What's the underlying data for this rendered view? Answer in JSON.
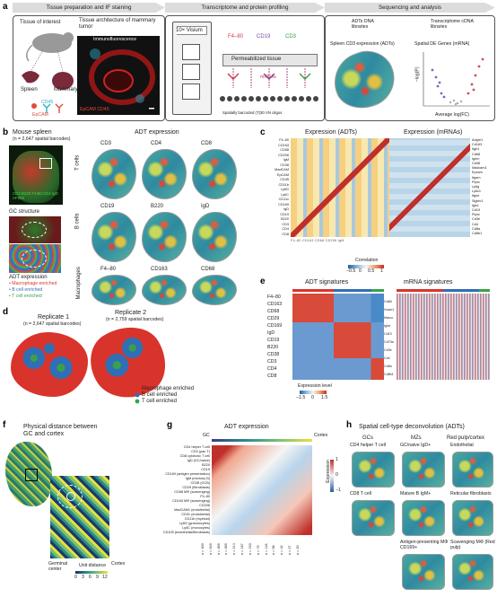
{
  "panel_letters": {
    "a": "a",
    "b": "b",
    "c": "c",
    "d": "d",
    "e": "e",
    "f": "f",
    "g": "g",
    "h": "h"
  },
  "a": {
    "header1": "Tissue preparation and IF staining",
    "header2": "Transcriptome and protein profiling",
    "header3": "Sequencing and analysis",
    "tissue_of_interest": "Tissue of interest",
    "tissue_architecture": "Tissue architecture of mammary tumor",
    "immunofluorescence": "Immunofluorescence",
    "spleen": "Spleen",
    "mammary_tumor": "Mammary tumor",
    "cd45": "CD45",
    "epcam": "EpCAM",
    "epcam_cd45": "EpCAM CD45",
    "visium": "10× Visium",
    "f480": "F4–80",
    "cd19": "CD19",
    "cd3": "CD3",
    "permeabilized": "Permeabilized tissue",
    "mrnas": "mRNAs",
    "spatial_barcode": "Spatially barcoded (T)30 VN oligos",
    "adts_dna": "ADTs DNA libraries",
    "transcriptome_cdna": "Transcriptome cDNA libraries",
    "spleen_cd3": "Spleen CD3 expression (ADTs)",
    "spatial_de": "Spatial DE Genes (mRNA)",
    "volcano_x": "Average log(FC)",
    "volcano_y": "−log(P)"
  },
  "b": {
    "mouse_spleen": "Mouse spleen",
    "n_barcodes": "(n = 2,647 spatial barcodes)",
    "adt_expression": "ADT expression",
    "gc_structure": "GC structure",
    "if_legend": "CD3 B220 F4/80 CD4 IgD AF555",
    "adt_expr_label": "ADT expression",
    "macrophage_enriched": "• Macrophage enriched",
    "bcell_enriched": "• B cell enriched",
    "tcell_enriched": "• T cell enriched",
    "row_labels": [
      "T cells",
      "B cells",
      "Macrophages"
    ],
    "maps": [
      [
        "CD3",
        "CD4",
        "CD8"
      ],
      [
        "CD19",
        "B220",
        "IgD"
      ],
      [
        "F4–80",
        "CD163",
        "CD68"
      ]
    ]
  },
  "c": {
    "title_adt": "Expression (ADTs)",
    "title_mrna": "Expression (mRNAs)",
    "adt_rows": [
      "F4–80",
      "CD163",
      "CD68",
      "CD206",
      "IgM",
      "CD38",
      "MadCAM",
      "EpCAM",
      "CD45",
      "CD11b",
      "Ly6G",
      "Ly6C",
      "CD11c",
      "CD169",
      "IgD",
      "CD19",
      "B220",
      "CD3",
      "CD4",
      "CD8"
    ],
    "mrna_rows": [
      "Adgre1",
      "Cd163",
      "Itgb1",
      "Cd68",
      "Ighm",
      "Cd38",
      "Madcam1",
      "Epcam",
      "Itgam",
      "Ptprc",
      "Ly6g",
      "Ly6c1",
      "Itgax",
      "Siglec1",
      "Ighd",
      "Cd19",
      "Ptprc",
      "Cd3e",
      "Cd4",
      "Cd8a",
      "Cd8b1"
    ],
    "corr_label": "Correlation",
    "corr_ticks": [
      "−0.5",
      "0",
      "0.5",
      "1"
    ]
  },
  "d": {
    "rep1": "Replicate 1",
    "rep1_n": "(n = 2,647 spatial barcodes)",
    "rep2": "Replicate 2",
    "rep2_n": "(n = 2,759 spatial barcodes)",
    "legend": [
      "Macrophage enriched",
      "B cell enriched",
      "T cell enriched"
    ],
    "legend_colors": [
      "#d9342b",
      "#2f6fb5",
      "#3aa14a"
    ]
  },
  "e": {
    "adt_title": "ADT signatures",
    "mrna_title": "mRNA signatures",
    "rows": [
      "F4–80",
      "CD163",
      "CD68",
      "CD29",
      "CD169",
      "IgD",
      "CD19",
      "B220",
      "CD38",
      "CD3",
      "CD4",
      "CD8"
    ],
    "mrna_genes": [
      "Cd68",
      "Vcam1",
      "Marco",
      "Ighd",
      "Cd19",
      "Cd79a",
      "Cd3e",
      "Cd4",
      "Cd8a",
      "Cd8b1"
    ],
    "expr_level": "Expression level",
    "expr_ticks": [
      "−1.5",
      "0",
      "1.5"
    ]
  },
  "f": {
    "title": "Physical distance between GC and cortex",
    "germinal_center": "Germinal center",
    "unit_distance": "Unit distance",
    "cortex": "Cortex",
    "ticks": [
      "0",
      "3",
      "6",
      "9",
      "12"
    ]
  },
  "g": {
    "title": "ADT expression",
    "gc": "GC",
    "cortex": "Cortex",
    "distance_ticks": [
      "0",
      "1",
      "2",
      "3",
      "4",
      "5",
      "6",
      "7",
      "8",
      "9",
      "10",
      "11",
      "12"
    ],
    "rows": [
      "CD4 helper T cell",
      "CD3 (pan T)",
      "CD8 cytotoxic T cell",
      "IgD (GC/naive)",
      "B220",
      "CD19",
      "CD169 (antigen presentation)",
      "IgM (memory B)",
      "CD38 (GCB)",
      "CD29 (fibroblasts)",
      "CD68 MΦ (scavenging)",
      "F4–80",
      "CD163 MΦ (scavenging)",
      "CD206",
      "MadCAM1 (endothelial)",
      "CD31 (endothelial)",
      "CD11b (myeloid)",
      "Ly6G (granulocytes)",
      "Ly6C (monocytes)",
      "CD105 (endothelial/fibroblasts)"
    ],
    "group_labels": [
      "GCs",
      "MZs",
      "Red pulp/cortex"
    ],
    "n_counts": [
      "n = 300",
      "n = 549",
      "n = 399",
      "n = 289",
      "n = 214",
      "n = 187",
      "n = 153",
      "n = 79",
      "n = 118",
      "n = 56",
      "n = 42",
      "n = 27",
      "n = 20"
    ],
    "colorbar_label": "Expression",
    "colorbar_ticks": [
      "1",
      "0",
      "−1"
    ]
  },
  "h": {
    "title": "Spatial cell-type deconvolution (ADTs)",
    "col_gcs": "GCs",
    "col_mzs": "MZs",
    "col_red": "Red pulp/cortex",
    "maps": [
      [
        "CD4 helper T cell",
        "GC/naive IgD+",
        "Endothelial"
      ],
      [
        "CD8 T cell",
        "Mature B IgM+",
        "Reticular fibroblasts"
      ],
      [
        "",
        "Antigen-presenting MΦ CD169+",
        "Scavenging MΦ (Red pulp)"
      ]
    ]
  }
}
